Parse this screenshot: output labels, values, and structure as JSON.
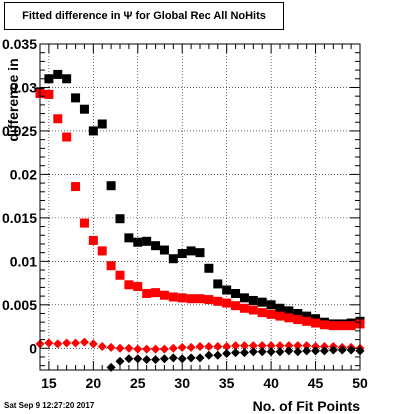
{
  "chart_data": {
    "type": "scatter",
    "title": "Fitted difference in  Ψ  for Global Rec All NoHits",
    "xlabel": "No. of Fit Points",
    "ylabel": "difference in",
    "xlim": [
      14,
      50
    ],
    "ylim": [
      -0.0025,
      0.035
    ],
    "x_ticks": [
      "15",
      "20",
      "25",
      "30",
      "35",
      "40",
      "45",
      "50"
    ],
    "y_ticks": [
      "0",
      "0.005",
      "0.01",
      "0.015",
      "0.02",
      "0.025",
      "0.03",
      "0.035"
    ],
    "grid": true,
    "series": [
      {
        "color": "#000000",
        "marker": "square",
        "points": [
          [
            14,
            0.0295
          ],
          [
            15,
            0.031
          ],
          [
            16,
            0.0315
          ],
          [
            17,
            0.031
          ],
          [
            18,
            0.0288
          ],
          [
            19,
            0.0275
          ],
          [
            20,
            0.025
          ],
          [
            21,
            0.0258
          ],
          [
            22,
            0.0187
          ],
          [
            23,
            0.0149
          ],
          [
            24,
            0.0127
          ],
          [
            25,
            0.0122
          ],
          [
            26,
            0.0123
          ],
          [
            27,
            0.0118
          ],
          [
            28,
            0.0113
          ],
          [
            29,
            0.0103
          ],
          [
            30,
            0.0109
          ],
          [
            31,
            0.0112
          ],
          [
            32,
            0.011
          ],
          [
            33,
            0.0092
          ],
          [
            34,
            0.0074
          ],
          [
            35,
            0.0067
          ],
          [
            36,
            0.0063
          ],
          [
            37,
            0.0058
          ],
          [
            38,
            0.0055
          ],
          [
            39,
            0.0053
          ],
          [
            40,
            0.005
          ],
          [
            41,
            0.0046
          ],
          [
            42,
            0.0043
          ],
          [
            43,
            0.004
          ],
          [
            44,
            0.0037
          ],
          [
            45,
            0.0034
          ],
          [
            46,
            0.003
          ],
          [
            47,
            0.0028
          ],
          [
            48,
            0.0028
          ],
          [
            49,
            0.0029
          ],
          [
            50,
            0.0031
          ]
        ]
      },
      {
        "color": "#ff0000",
        "marker": "square",
        "points": [
          [
            14,
            0.0293
          ],
          [
            15,
            0.0292
          ],
          [
            16,
            0.0264
          ],
          [
            17,
            0.0243
          ],
          [
            18,
            0.0186
          ],
          [
            19,
            0.0144
          ],
          [
            20,
            0.0124
          ],
          [
            21,
            0.0112
          ],
          [
            22,
            0.0095
          ],
          [
            23,
            0.0084
          ],
          [
            24,
            0.0073
          ],
          [
            25,
            0.0071
          ],
          [
            26,
            0.0063
          ],
          [
            27,
            0.0064
          ],
          [
            28,
            0.0061
          ],
          [
            29,
            0.0059
          ],
          [
            30,
            0.0058
          ],
          [
            31,
            0.0057
          ],
          [
            32,
            0.0057
          ],
          [
            33,
            0.0056
          ],
          [
            34,
            0.0054
          ],
          [
            35,
            0.0052
          ],
          [
            36,
            0.0049
          ],
          [
            37,
            0.0046
          ],
          [
            38,
            0.0044
          ],
          [
            39,
            0.0041
          ],
          [
            40,
            0.0039
          ],
          [
            41,
            0.0037
          ],
          [
            42,
            0.0035
          ],
          [
            43,
            0.0033
          ],
          [
            44,
            0.0031
          ],
          [
            45,
            0.0029
          ],
          [
            46,
            0.0027
          ],
          [
            47,
            0.0026
          ],
          [
            48,
            0.0026
          ],
          [
            49,
            0.0026
          ],
          [
            50,
            0.0028
          ]
        ]
      },
      {
        "color": "#ff0000",
        "marker": "diamond",
        "points": [
          [
            14,
            0.0005
          ],
          [
            15,
            0.0006
          ],
          [
            16,
            0.0005
          ],
          [
            17,
            0.0006
          ],
          [
            18,
            0.0006
          ],
          [
            19,
            0.0007
          ],
          [
            20,
            0.0005
          ],
          [
            21,
            0.0002
          ],
          [
            22,
            0.0001
          ],
          [
            23,
            0.0
          ],
          [
            24,
            0.0
          ],
          [
            25,
            -0.0001
          ],
          [
            26,
            -0.0001
          ],
          [
            27,
            -0.0001
          ],
          [
            28,
            -0.0001
          ],
          [
            29,
            0.0
          ],
          [
            30,
            0.0001
          ],
          [
            31,
            0.0001
          ],
          [
            32,
            0.0002
          ],
          [
            33,
            0.0002
          ],
          [
            34,
            0.0002
          ],
          [
            35,
            0.0002
          ],
          [
            36,
            0.0003
          ],
          [
            37,
            0.0003
          ],
          [
            38,
            0.0003
          ],
          [
            39,
            0.0003
          ],
          [
            40,
            0.0003
          ],
          [
            41,
            0.0003
          ],
          [
            42,
            0.0003
          ],
          [
            43,
            0.0003
          ],
          [
            44,
            0.0003
          ],
          [
            45,
            0.0002
          ],
          [
            46,
            0.0002
          ],
          [
            47,
            0.0002
          ],
          [
            48,
            0.0001
          ],
          [
            49,
            0.0001
          ],
          [
            50,
            0.0
          ]
        ]
      },
      {
        "color": "#000000",
        "marker": "diamond",
        "points": [
          [
            22,
            -0.0022
          ],
          [
            23,
            -0.0015
          ],
          [
            24,
            -0.0012
          ],
          [
            25,
            -0.0012
          ],
          [
            26,
            -0.0013
          ],
          [
            27,
            -0.0013
          ],
          [
            28,
            -0.0012
          ],
          [
            29,
            -0.0011
          ],
          [
            30,
            -0.0012
          ],
          [
            31,
            -0.0011
          ],
          [
            32,
            -0.0011
          ],
          [
            33,
            -0.0008
          ],
          [
            34,
            -0.0008
          ],
          [
            35,
            -0.0006
          ],
          [
            36,
            -0.0005
          ],
          [
            37,
            -0.0005
          ],
          [
            38,
            -0.0004
          ],
          [
            39,
            -0.0004
          ],
          [
            40,
            -0.0004
          ],
          [
            41,
            -0.0004
          ],
          [
            42,
            -0.0003
          ],
          [
            43,
            -0.0004
          ],
          [
            44,
            -0.0003
          ],
          [
            45,
            -0.0003
          ],
          [
            46,
            -0.0003
          ],
          [
            47,
            -0.0002
          ],
          [
            48,
            -0.0002
          ],
          [
            49,
            -0.0002
          ],
          [
            50,
            -0.0003
          ]
        ]
      }
    ]
  },
  "footer": {
    "date": "Sat Sep  9 12:27:20 2017"
  }
}
